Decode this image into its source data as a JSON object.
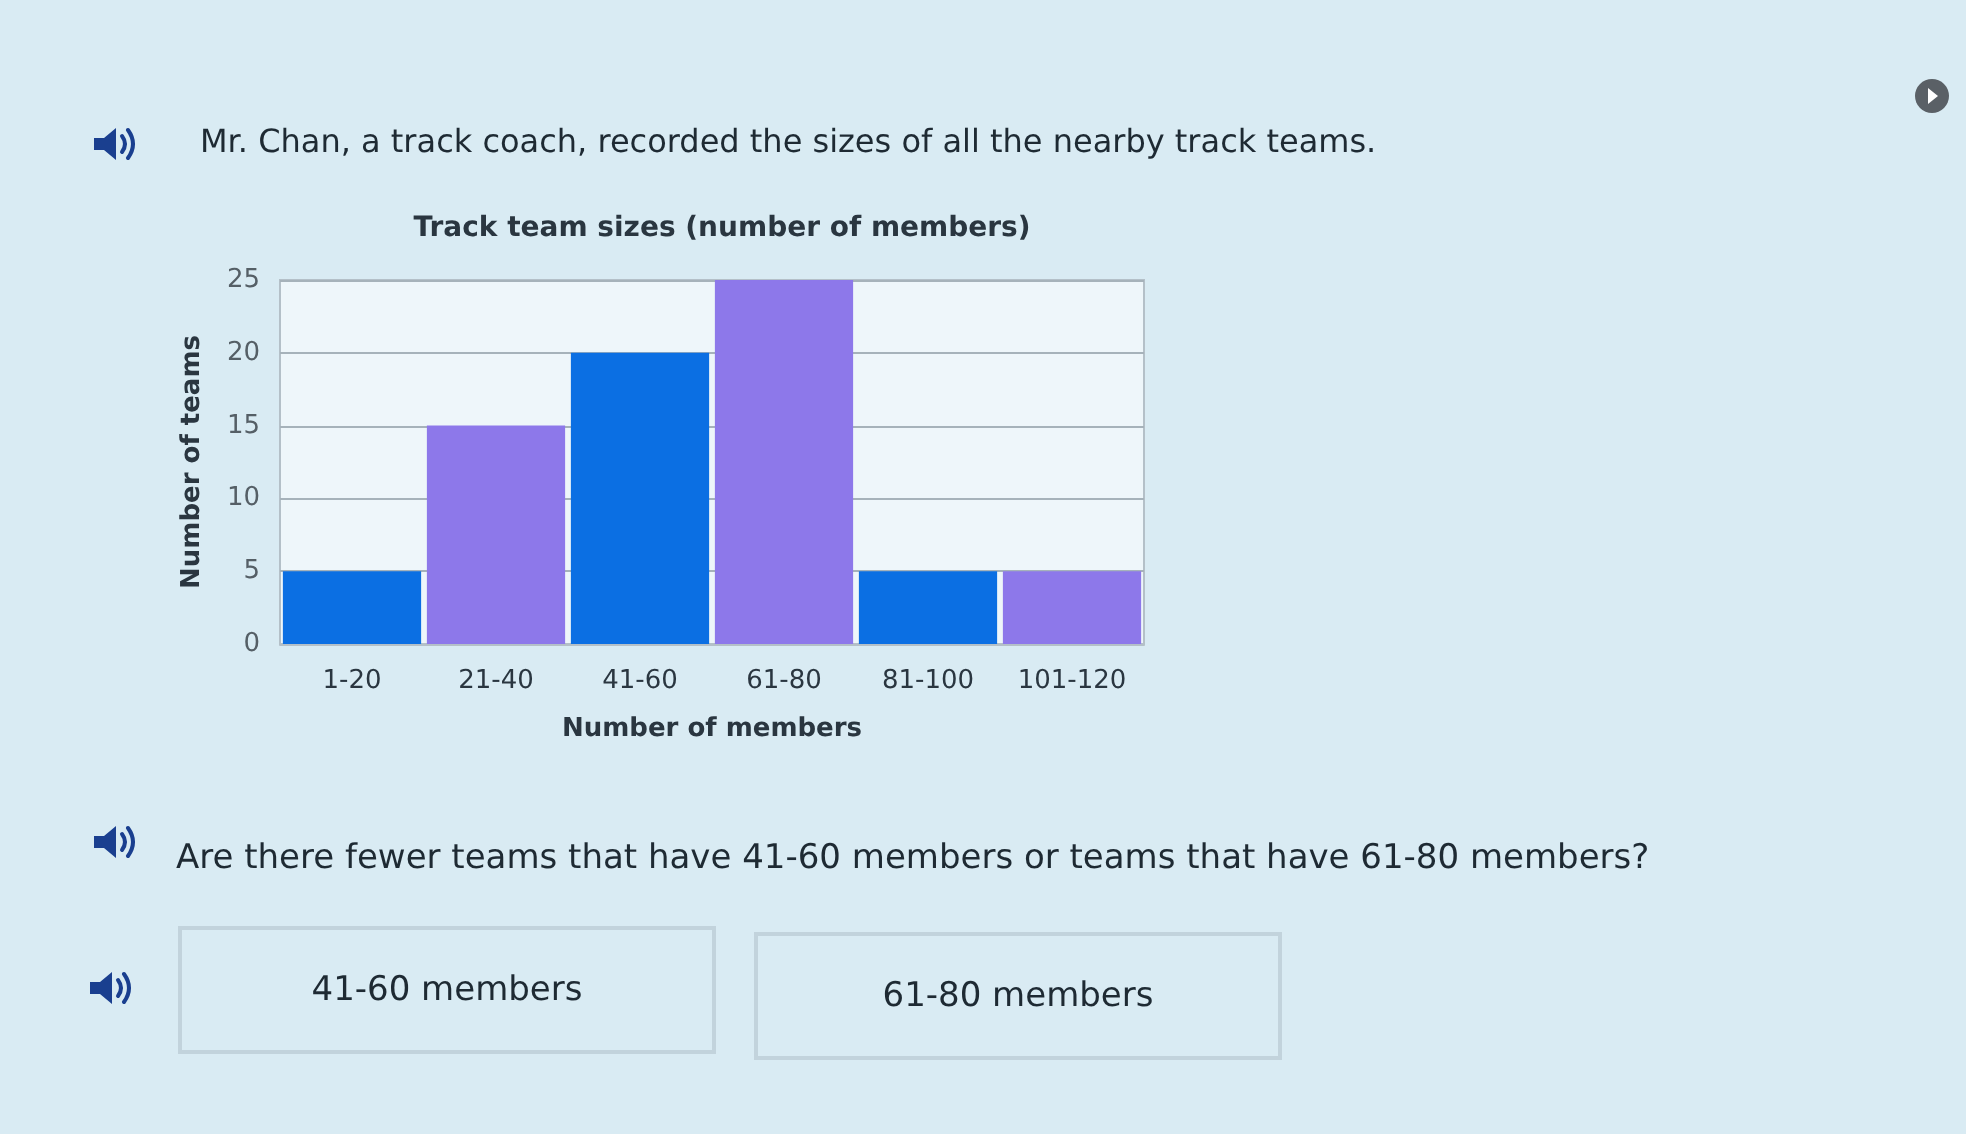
{
  "chart_data": {
    "type": "bar",
    "title": "Track team sizes (number of members)",
    "xlabel": "Number of members",
    "ylabel": "Number of teams",
    "categories": [
      "1-20",
      "21-40",
      "41-60",
      "61-80",
      "81-100",
      "101-120"
    ],
    "values": [
      5,
      15,
      20,
      25,
      5,
      5
    ],
    "colors": [
      "#0b6fe3",
      "#8d78ea",
      "#0b6fe3",
      "#8d78ea",
      "#0b6fe3",
      "#8d78ea"
    ],
    "ylim": [
      0,
      25
    ],
    "yticks": [
      0,
      5,
      10,
      15,
      20,
      25
    ],
    "grid": "y",
    "annotations": [
      "Mr. Chan, a track coach, recorded the sizes of all the nearby track teams.",
      "Are there fewer teams that have 41-60 members or teams that have 61-80 members?",
      "41-60 members",
      "61-80 members"
    ]
  }
}
